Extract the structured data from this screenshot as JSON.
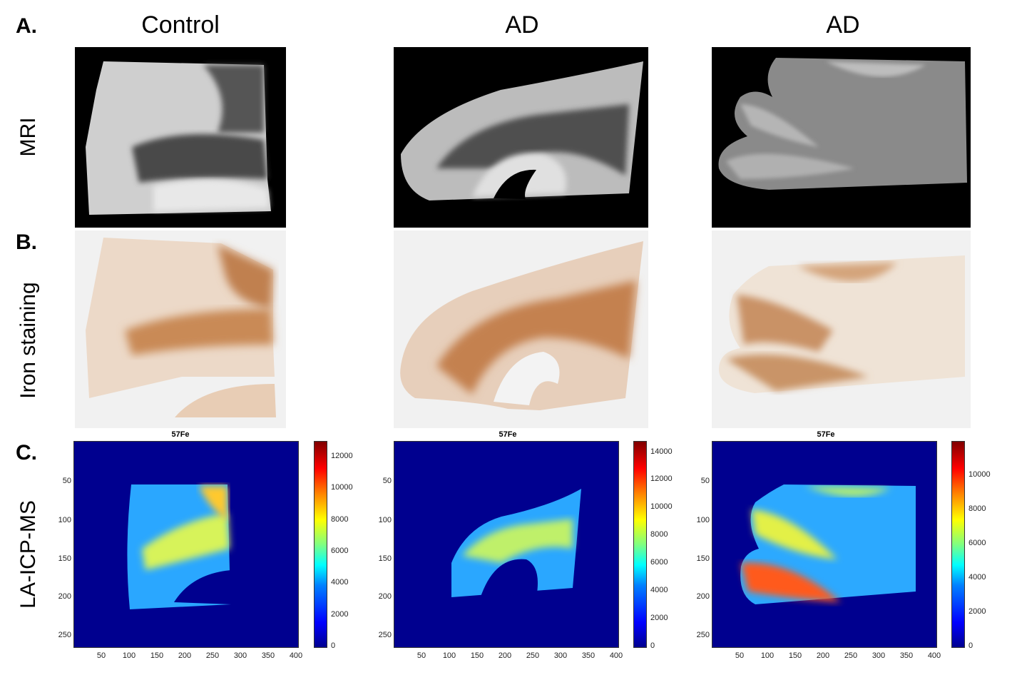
{
  "section_labels": {
    "a": "A.",
    "b": "B.",
    "c": "C."
  },
  "columns": [
    "Control",
    "AD",
    "AD"
  ],
  "rows": [
    "MRI",
    "Iron staining",
    "LA-ICP-MS"
  ],
  "heatmaps": [
    {
      "title": "57Fe",
      "colorbar_max": 13000,
      "colorbar_ticks": [
        "12000",
        "10000",
        "8000",
        "6000",
        "4000",
        "2000",
        "0"
      ],
      "x_ticks": [
        "50",
        "100",
        "150",
        "200",
        "250",
        "300",
        "350",
        "400"
      ],
      "y_ticks": [
        "50",
        "100",
        "150",
        "200",
        "250"
      ]
    },
    {
      "title": "57Fe",
      "colorbar_max": 14800,
      "colorbar_ticks": [
        "14000",
        "12000",
        "10000",
        "8000",
        "6000",
        "4000",
        "2000",
        "0"
      ],
      "x_ticks": [
        "50",
        "100",
        "150",
        "200",
        "250",
        "300",
        "350",
        "400"
      ],
      "y_ticks": [
        "50",
        "100",
        "150",
        "200",
        "250"
      ]
    },
    {
      "title": "57Fe",
      "colorbar_max": 12000,
      "colorbar_ticks": [
        "10000",
        "8000",
        "6000",
        "4000",
        "2000",
        "0"
      ],
      "x_ticks": [
        "50",
        "100",
        "150",
        "200",
        "250",
        "300",
        "350",
        "400"
      ],
      "y_ticks": [
        "50",
        "100",
        "150",
        "200",
        "250"
      ]
    }
  ],
  "colors": {
    "mri_bg": "#000000",
    "stain": "#b5703e",
    "heat_bg": "#00008f"
  }
}
